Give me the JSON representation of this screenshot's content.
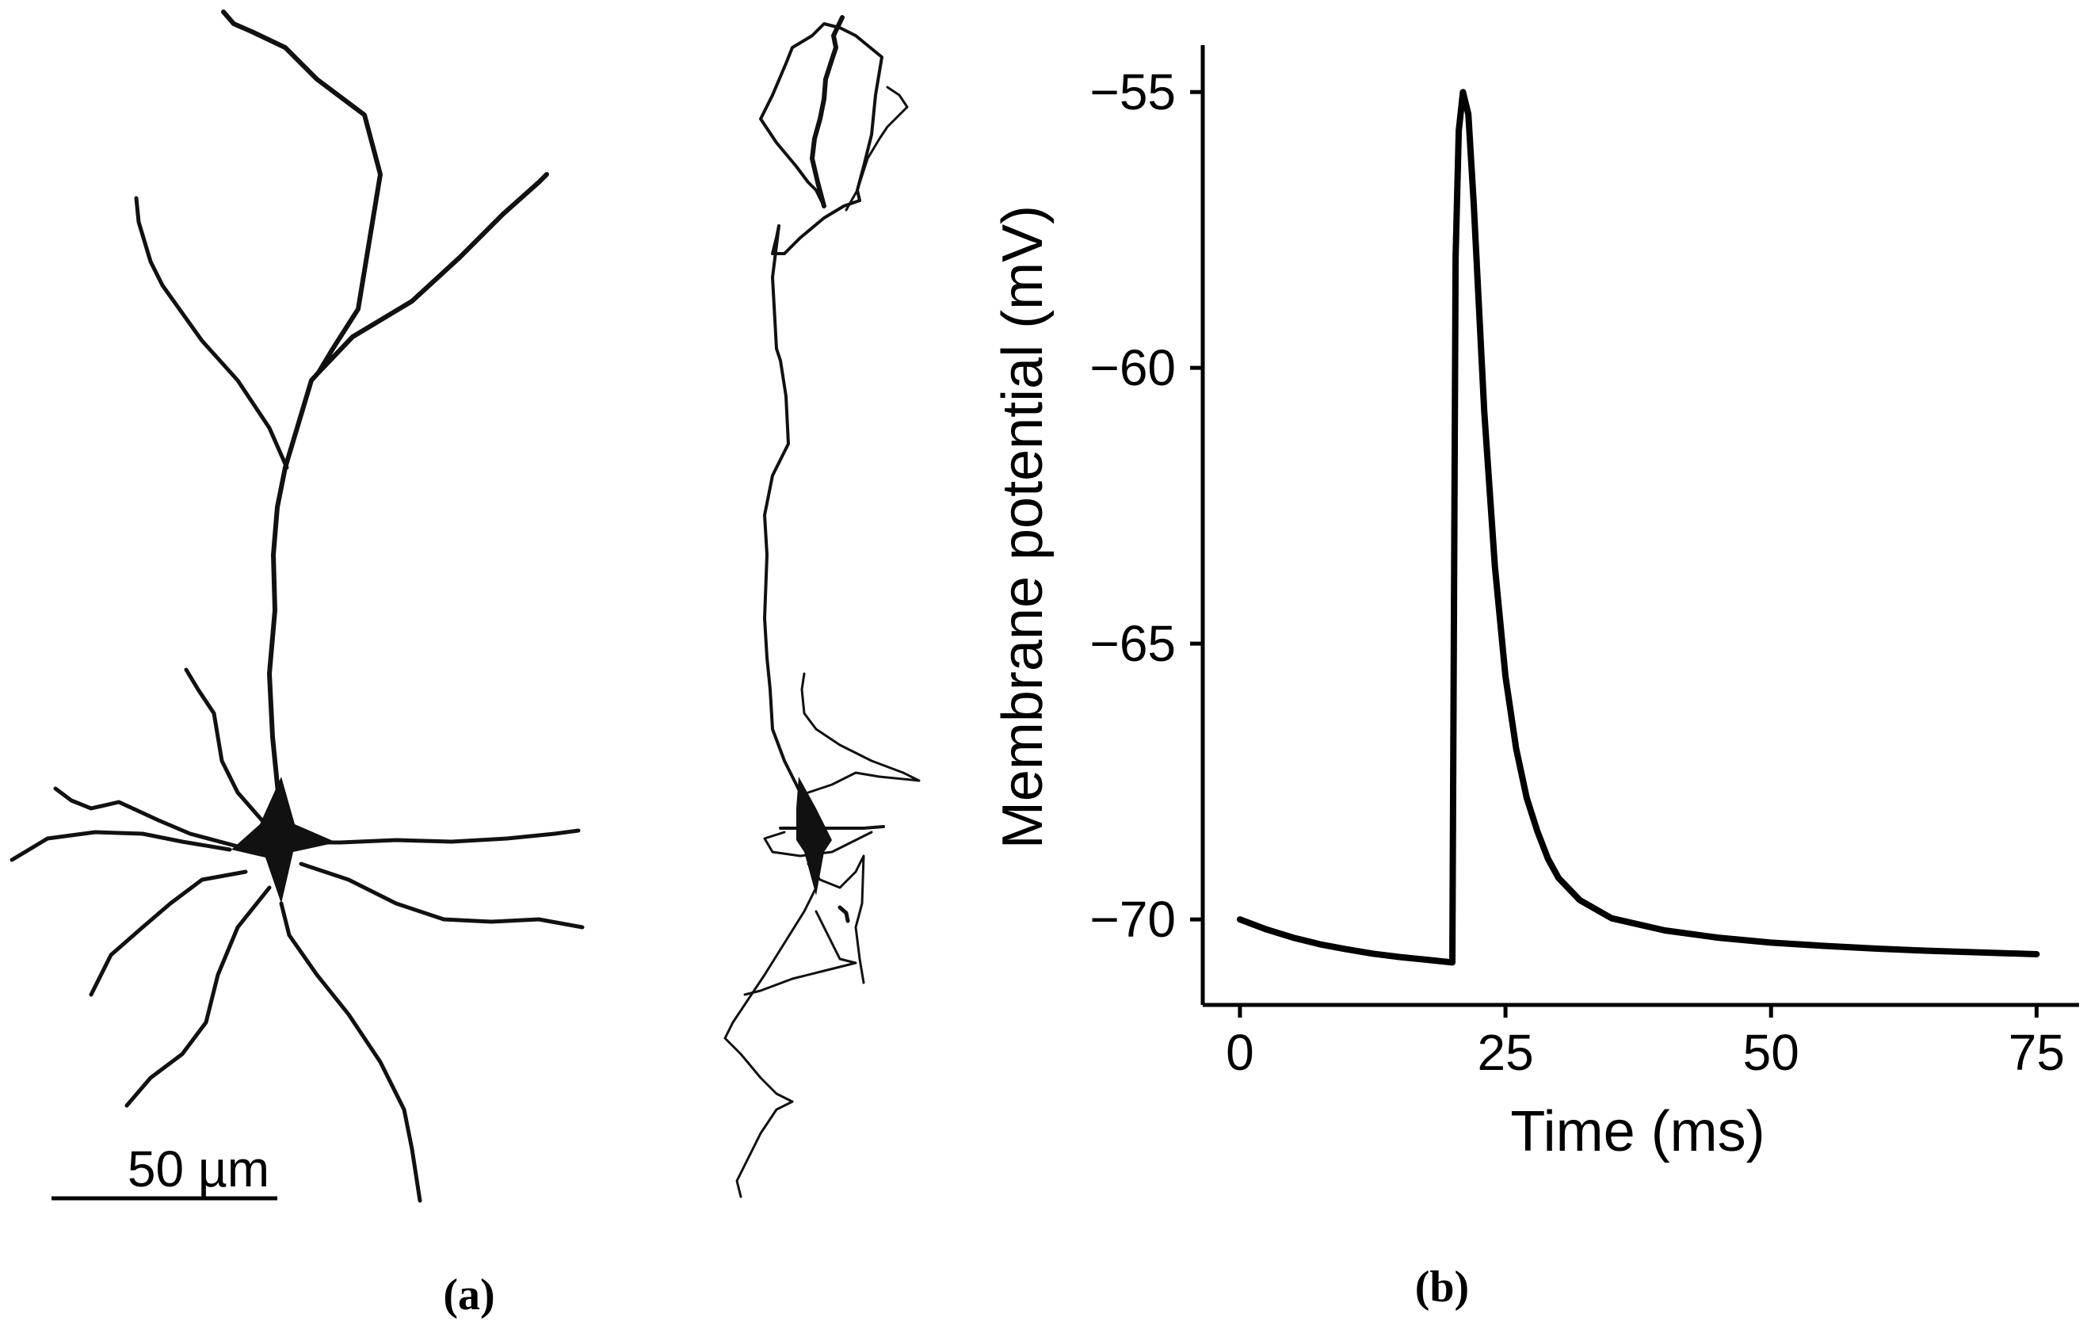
{
  "panel_a": {
    "label": "(a)",
    "scale_bar": {
      "text": "50 µm",
      "length_um": 50
    }
  },
  "panel_b": {
    "label": "(b)"
  },
  "chart_data": {
    "type": "line",
    "title": "",
    "xlabel": "Time (ms)",
    "ylabel": "Membrane potential (mV)",
    "xlim": [
      -3.5,
      79
    ],
    "ylim": [
      -71.55,
      -54.15
    ],
    "xticks": [
      0,
      25,
      50,
      75
    ],
    "xtick_labels": [
      "0",
      "25",
      "50",
      "75"
    ],
    "yticks": [
      -70,
      -65,
      -60,
      -55
    ],
    "ytick_labels": [
      "−70",
      "−65",
      "−60",
      "−55"
    ],
    "grid": false,
    "legend": "none",
    "series": [
      {
        "color": "#000000",
        "x": [
          0,
          2.5,
          5,
          7.5,
          10,
          12.5,
          15,
          17.5,
          20,
          20.0,
          20.3,
          20.6,
          21.0,
          21.5,
          22,
          23,
          24,
          25,
          26,
          27,
          28,
          29,
          30,
          32,
          35,
          40,
          45,
          50,
          55,
          60,
          65,
          70,
          75
        ],
        "y": [
          -70.0,
          -70.18,
          -70.33,
          -70.45,
          -70.54,
          -70.62,
          -70.68,
          -70.73,
          -70.78,
          -70.78,
          -58.0,
          -55.7,
          -55.0,
          -55.4,
          -57.0,
          -60.8,
          -63.6,
          -65.6,
          -66.9,
          -67.8,
          -68.4,
          -68.9,
          -69.25,
          -69.65,
          -69.98,
          -70.2,
          -70.33,
          -70.42,
          -70.48,
          -70.53,
          -70.57,
          -70.6,
          -70.63
        ]
      }
    ]
  }
}
